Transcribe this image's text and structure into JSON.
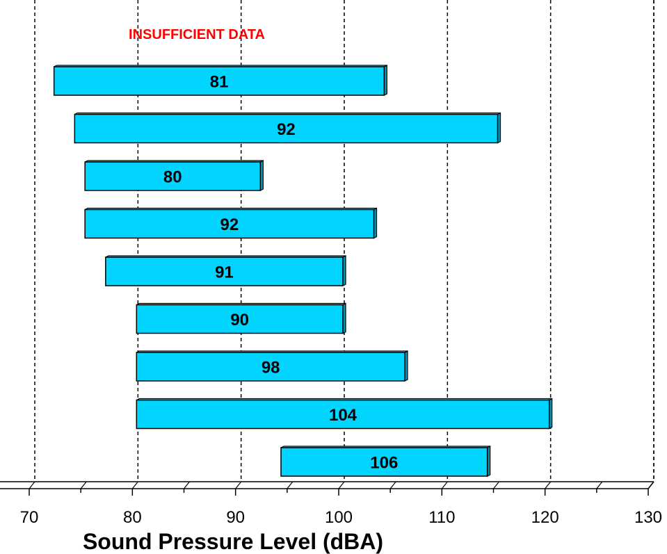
{
  "chart_data": {
    "type": "floating-bar",
    "orientation": "horizontal",
    "xlabel": "Sound Pressure Level (dBA)",
    "xlim": [
      70,
      130
    ],
    "xticks": [
      70,
      80,
      90,
      100,
      110,
      120,
      130
    ],
    "grid": "vertical dashed",
    "annotation": {
      "text": "INSUFFICIENT DATA",
      "color": "#ff0000"
    },
    "bar_color": "#00d4ff",
    "bars": [
      {
        "label": "81",
        "start": 72,
        "end": 104
      },
      {
        "label": "92",
        "start": 74,
        "end": 115
      },
      {
        "label": "80",
        "start": 75,
        "end": 92
      },
      {
        "label": "92",
        "start": 75,
        "end": 103
      },
      {
        "label": "91",
        "start": 77,
        "end": 100
      },
      {
        "label": "90",
        "start": 80,
        "end": 100
      },
      {
        "label": "98",
        "start": 80,
        "end": 106
      },
      {
        "label": "104",
        "start": 80,
        "end": 120
      },
      {
        "label": "106",
        "start": 94,
        "end": 114
      }
    ]
  }
}
